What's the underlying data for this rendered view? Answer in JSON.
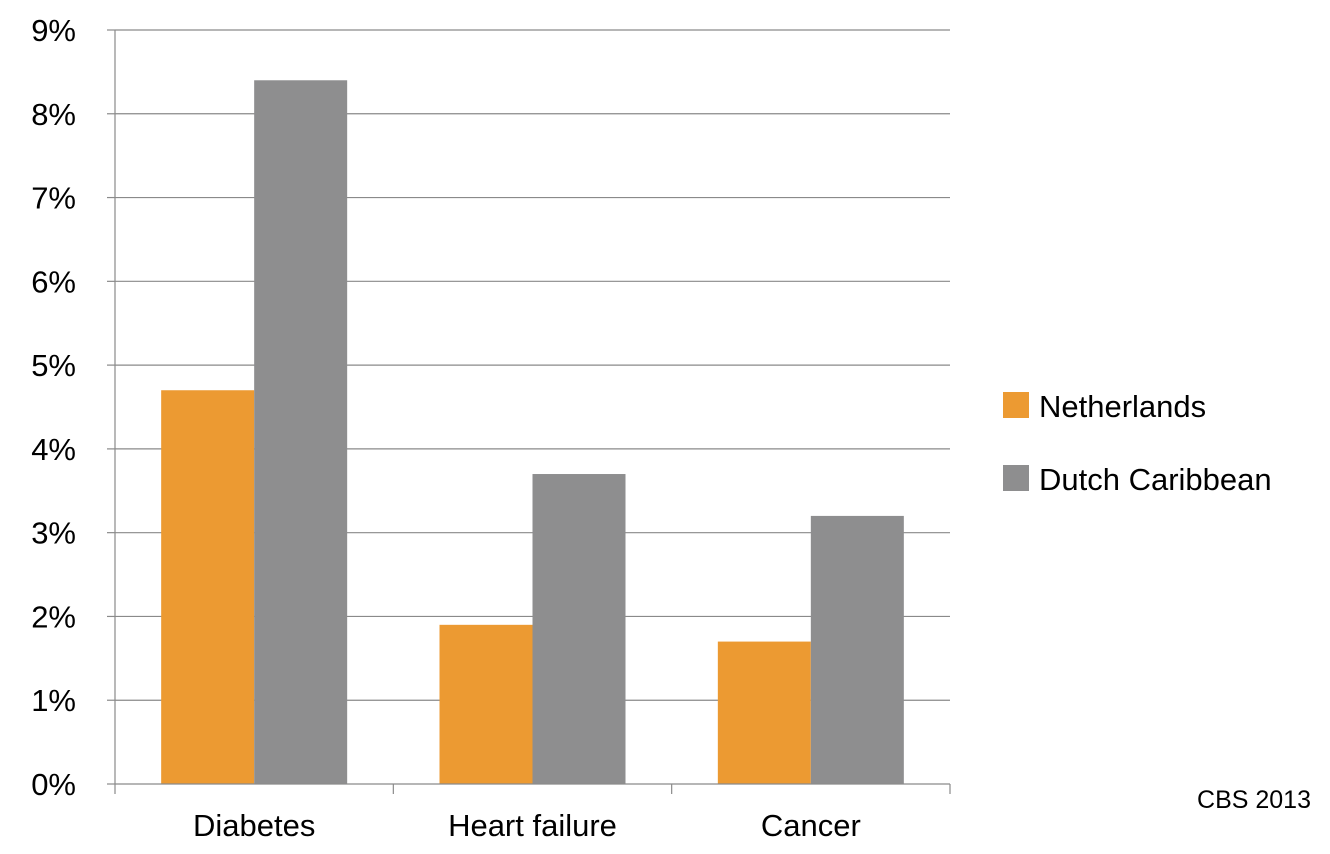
{
  "chart_data": {
    "type": "bar",
    "categories": [
      "Diabetes",
      "Heart failure",
      "Cancer"
    ],
    "series": [
      {
        "name": "Netherlands",
        "values": [
          4.7,
          1.9,
          1.7
        ],
        "color": "#EC9A32"
      },
      {
        "name": "Dutch Caribbean",
        "values": [
          8.4,
          3.7,
          3.2
        ],
        "color": "#8E8E8F"
      }
    ],
    "ylim": [
      0,
      9
    ],
    "yticks": [
      0,
      1,
      2,
      3,
      4,
      5,
      6,
      7,
      8,
      9
    ],
    "ytick_labels": [
      "0%",
      "1%",
      "2%",
      "3%",
      "4%",
      "5%",
      "6%",
      "7%",
      "8%",
      "9%"
    ],
    "y_unit": "%",
    "grid": true,
    "legend_position": "right",
    "annotation": "CBS 2013"
  }
}
